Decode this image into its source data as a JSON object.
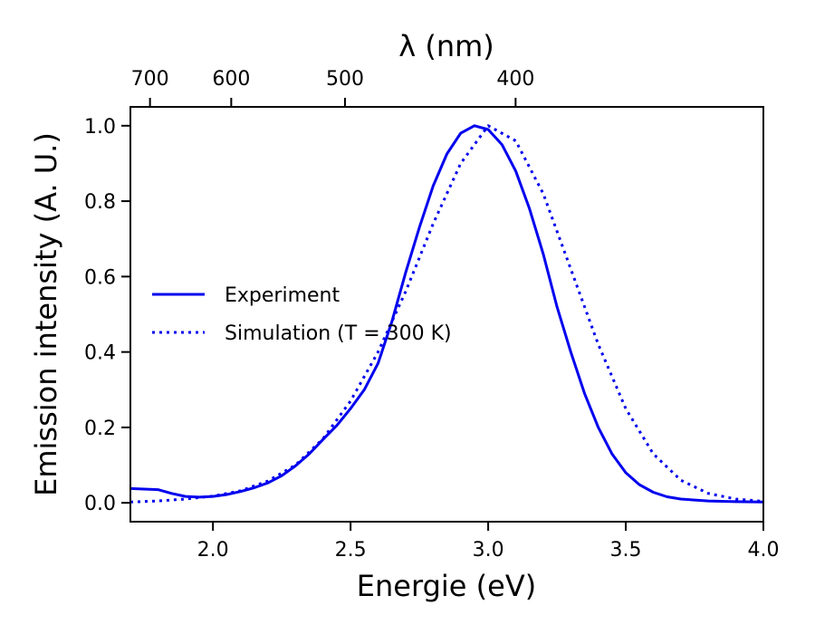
{
  "chart_data": {
    "type": "line",
    "xlabel": "Energie (eV)",
    "ylabel": "Emission intensity (A. U.)",
    "top_xlabel": "λ (nm)",
    "xlim": [
      1.7,
      4.0
    ],
    "ylim": [
      -0.05,
      1.05
    ],
    "x_ticks": [
      2.0,
      2.5,
      3.0,
      3.5,
      4.0
    ],
    "x_tick_labels": [
      "2.0",
      "2.5",
      "3.0",
      "3.5",
      "4.0"
    ],
    "y_ticks": [
      0.0,
      0.2,
      0.4,
      0.6,
      0.8,
      1.0
    ],
    "y_tick_labels": [
      "0.0",
      "0.2",
      "0.4",
      "0.6",
      "0.8",
      "1.0"
    ],
    "top_ticks_nm": [
      700,
      600,
      500,
      400
    ],
    "top_tick_labels": [
      "700",
      "600",
      "500",
      "400"
    ],
    "grid": false,
    "legend_position": "center-left",
    "series": [
      {
        "name": "Experiment",
        "style": "solid",
        "color": "#0000ee",
        "x": [
          1.7,
          1.8,
          1.85,
          1.9,
          1.95,
          2.0,
          2.05,
          2.1,
          2.15,
          2.2,
          2.25,
          2.3,
          2.35,
          2.4,
          2.45,
          2.5,
          2.55,
          2.6,
          2.65,
          2.7,
          2.75,
          2.8,
          2.85,
          2.9,
          2.95,
          3.0,
          3.05,
          3.1,
          3.15,
          3.2,
          3.25,
          3.3,
          3.35,
          3.4,
          3.45,
          3.5,
          3.55,
          3.6,
          3.65,
          3.7,
          3.8,
          3.9,
          4.0
        ],
        "y": [
          0.038,
          0.035,
          0.025,
          0.017,
          0.015,
          0.017,
          0.022,
          0.03,
          0.04,
          0.053,
          0.072,
          0.098,
          0.13,
          0.168,
          0.205,
          0.25,
          0.3,
          0.37,
          0.48,
          0.61,
          0.73,
          0.84,
          0.925,
          0.98,
          1.0,
          0.99,
          0.95,
          0.88,
          0.78,
          0.66,
          0.52,
          0.4,
          0.29,
          0.2,
          0.13,
          0.08,
          0.048,
          0.028,
          0.016,
          0.01,
          0.005,
          0.003,
          0.002
        ]
      },
      {
        "name": "Simulation (T = 300 K)",
        "style": "dotted",
        "color": "#0000ee",
        "x": [
          1.7,
          1.8,
          1.9,
          2.0,
          2.1,
          2.2,
          2.3,
          2.4,
          2.5,
          2.6,
          2.7,
          2.8,
          2.9,
          3.0,
          3.1,
          3.2,
          3.3,
          3.4,
          3.5,
          3.6,
          3.7,
          3.8,
          3.9,
          4.0
        ],
        "y": [
          0.002,
          0.005,
          0.01,
          0.018,
          0.032,
          0.058,
          0.1,
          0.17,
          0.27,
          0.4,
          0.56,
          0.74,
          0.9,
          1.0,
          0.96,
          0.82,
          0.62,
          0.42,
          0.25,
          0.13,
          0.06,
          0.025,
          0.01,
          0.004
        ]
      }
    ]
  }
}
